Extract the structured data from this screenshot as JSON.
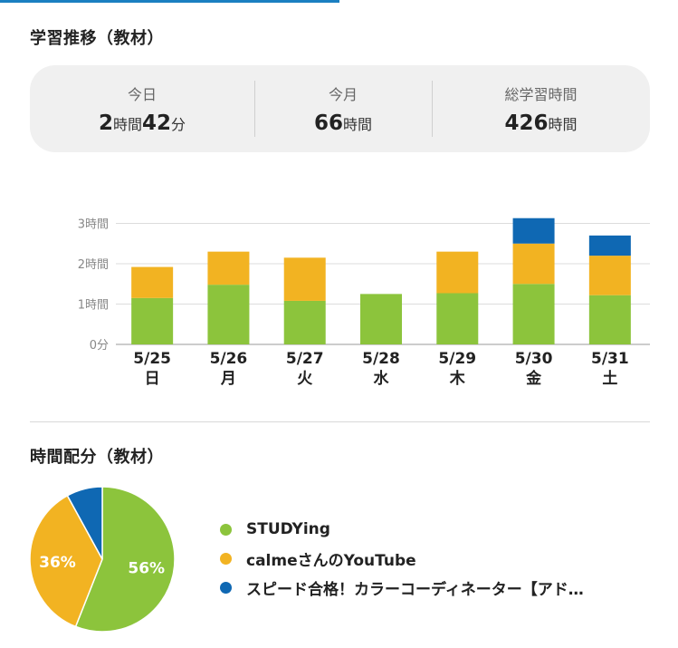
{
  "sections": {
    "trend_title": "学習推移（教材）",
    "allocation_title": "時間配分（教材）"
  },
  "stats": [
    {
      "label": "今日",
      "parts": [
        {
          "num": "2",
          "unit": "時間"
        },
        {
          "num": "42",
          "unit": "分"
        }
      ]
    },
    {
      "label": "今月",
      "parts": [
        {
          "num": "66",
          "unit": "時間"
        }
      ]
    },
    {
      "label": "総学習時間",
      "parts": [
        {
          "num": "426",
          "unit": "時間"
        }
      ]
    }
  ],
  "colors": {
    "green": "#8cc43c",
    "orange": "#f2b322",
    "blue": "#0f68b3",
    "accent": "#1a7fc1"
  },
  "chart_data": [
    {
      "type": "bar",
      "stacked": true,
      "categories": [
        "5/25",
        "5/26",
        "5/27",
        "5/28",
        "5/29",
        "5/30",
        "5/31"
      ],
      "weekdays": [
        "日",
        "月",
        "火",
        "水",
        "木",
        "金",
        "土"
      ],
      "series": [
        {
          "name": "STUDYing",
          "color": "#8cc43c",
          "values": [
            1.15,
            1.48,
            1.08,
            1.25,
            1.27,
            1.5,
            1.22
          ]
        },
        {
          "name": "calmeさんのYouTube",
          "color": "#f2b322",
          "values": [
            0.77,
            0.82,
            1.07,
            0,
            1.03,
            1.0,
            0.98
          ]
        },
        {
          "name": "スピード合格！カラーコーディネーター【アド…",
          "color": "#0f68b3",
          "values": [
            0,
            0,
            0,
            0,
            0,
            0.63,
            0.5
          ]
        }
      ],
      "yticks": [
        {
          "value": 0,
          "label": "0分"
        },
        {
          "value": 1,
          "label": "1時間"
        },
        {
          "value": 2,
          "label": "2時間"
        },
        {
          "value": 3,
          "label": "3時間"
        }
      ],
      "ylim": [
        0,
        3
      ]
    },
    {
      "type": "pie",
      "slices": [
        {
          "name": "STUDYing",
          "value": 56,
          "label": "56%",
          "color": "#8cc43c"
        },
        {
          "name": "calmeさんのYouTube",
          "value": 36,
          "label": "36%",
          "color": "#f2b322"
        },
        {
          "name": "スピード合格！カラーコーディネーター【アド…",
          "value": 8,
          "label": "",
          "color": "#0f68b3"
        }
      ]
    }
  ],
  "legend": [
    {
      "label": "STUDYing",
      "color": "#8cc43c"
    },
    {
      "label": "calmeさんのYouTube",
      "color": "#f2b322"
    },
    {
      "label": "スピード合格！カラーコーディネーター【アド…",
      "color": "#0f68b3"
    }
  ]
}
